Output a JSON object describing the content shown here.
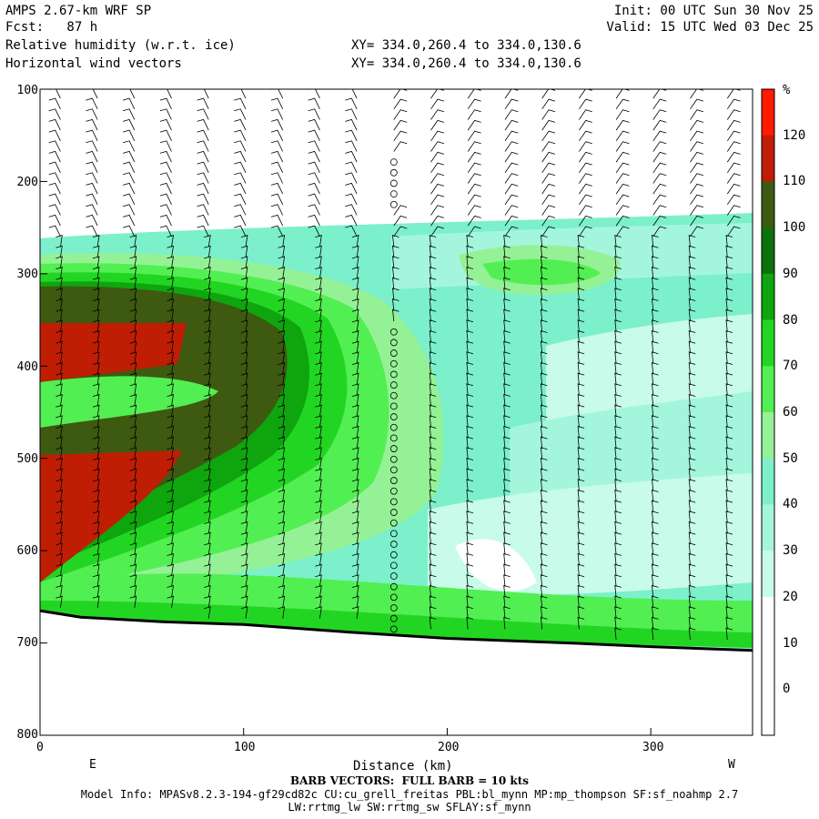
{
  "header": {
    "model_title": "AMPS 2.67-km WRF SP",
    "forecast": "Fcst:   87 h",
    "field_1": "Relative humidity (w.r.t. ice)",
    "field_2": "Horizontal wind vectors",
    "init": "Init: 00 UTC Sun 30 Nov 25",
    "valid": "Valid: 15 UTC Wed 03 Dec 25",
    "xy_1": "XY= 334.0,260.4 to 334.0,130.6",
    "xy_2": "XY= 334.0,260.4 to 334.0,130.6"
  },
  "footer": {
    "barb_note": "BARB VECTORS:  FULL BARB = 10 kts",
    "model_info": "Model Info: MPASv8.2.3-194-gf29cd82c CU:cu_grell_freitas PBL:bl_mynn MP:mp_thompson SF:sf_noahmp 2.7",
    "model_info_2": "LW:rrtmg_lw SW:rrtmg_sw SFLAY:sf_mynn"
  },
  "chart_data": {
    "type": "heatmap",
    "title": "Relative humidity (w.r.t. ice)",
    "xlabel": "Distance (km)",
    "ylabel": "",
    "x_range": [
      0,
      350
    ],
    "y_range": [
      800,
      100
    ],
    "x_ticks": [
      "0",
      "100",
      "200",
      "300"
    ],
    "y_ticks": [
      "100",
      "200",
      "300",
      "400",
      "500",
      "600",
      "700",
      "800"
    ],
    "x_end_labels": {
      "left": "E",
      "right": "W"
    },
    "colorbar": {
      "unit": "%",
      "levels": [
        0,
        10,
        20,
        30,
        40,
        50,
        60,
        70,
        80,
        90,
        100,
        110,
        120
      ],
      "colors": [
        "#ffffff",
        "#ffffff",
        "#ffffff",
        "#c8fbe9",
        "#a3f6dc",
        "#7cf0cb",
        "#95f195",
        "#52ef52",
        "#23d523",
        "#0ea50e",
        "#0c720c",
        "#3d5a10",
        "#c01d05",
        "#ff1a00"
      ]
    },
    "terrain_pressure": [
      {
        "x": 0,
        "p": 665
      },
      {
        "x": 20,
        "p": 672
      },
      {
        "x": 60,
        "p": 677
      },
      {
        "x": 100,
        "p": 680
      },
      {
        "x": 150,
        "p": 688
      },
      {
        "x": 200,
        "p": 695
      },
      {
        "x": 260,
        "p": 700
      },
      {
        "x": 300,
        "p": 704
      },
      {
        "x": 350,
        "p": 708
      }
    ]
  }
}
